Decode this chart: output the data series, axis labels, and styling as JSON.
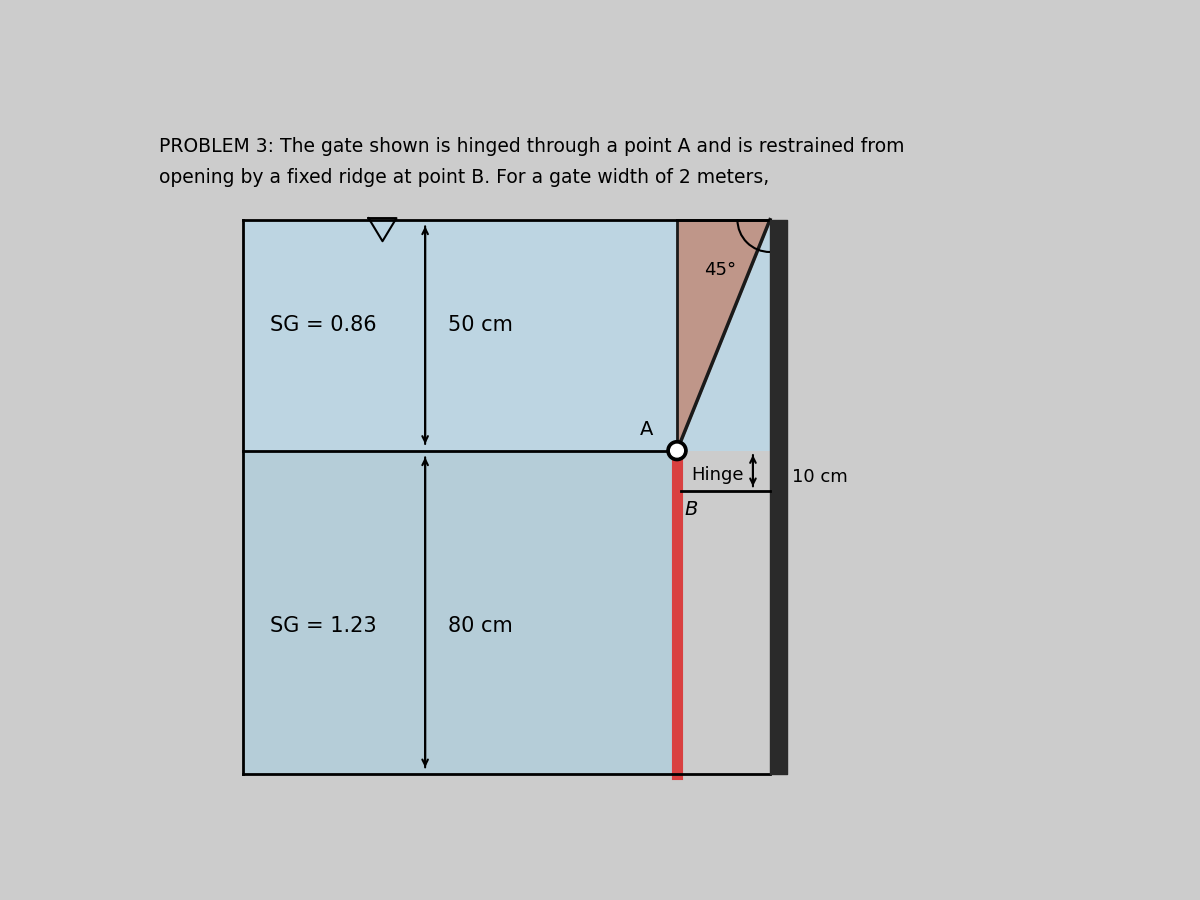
{
  "title_line1": "PROBLEM 3: The gate shown is hinged through a point A and is restrained from",
  "title_line2": "opening by a fixed ridge at point B. For a gate width of 2 meters,",
  "bg_color": "#cccccc",
  "fluid_upper_color": "#bdd5e2",
  "fluid_lower_color": "#b5cdd8",
  "gate_color": "#d94040",
  "triangle_fill": "#c09080",
  "sg_upper": "SG = 0.86",
  "sg_lower": "SG = 1.23",
  "dim_50": "50 cm",
  "dim_80": "80 cm",
  "dim_10": "10 cm",
  "angle_label": "45°",
  "label_A": "A",
  "label_B": "B",
  "label_hinge": "Hinge"
}
